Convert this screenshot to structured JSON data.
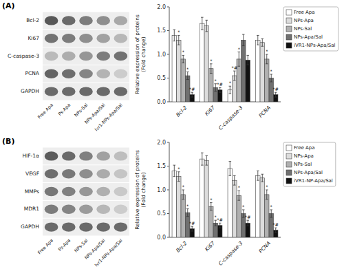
{
  "chart_data": [
    {
      "type": "heatmap",
      "title": "(A)",
      "x": [
        "Free Apa",
        "Ps-Apa",
        "NPs-Sal",
        "NPs-Apa/Sal",
        "Ivr1-NPs-Apa/Sal"
      ],
      "y": [
        "Bcl-2",
        "Ki67",
        "C-caspase-3",
        "PCNA",
        "GAPDH"
      ],
      "values": [
        [
          0.92,
          0.82,
          0.72,
          0.62,
          0.48
        ],
        [
          0.78,
          0.72,
          0.62,
          0.52,
          0.4
        ],
        [
          0.38,
          0.45,
          0.58,
          0.72,
          0.78
        ],
        [
          0.85,
          0.8,
          0.68,
          0.42,
          0.28
        ],
        [
          0.82,
          0.82,
          0.82,
          0.82,
          0.82
        ]
      ]
    },
    {
      "type": "bar",
      "categories": [
        "Bcl-2",
        "Ki67",
        "C-caspase-3",
        "PCNA"
      ],
      "ylabel": "Relative expression of proteins\n(Fold change)",
      "ylim": [
        0,
        2.0
      ],
      "yticks": [
        {
          "value": 0.0,
          "label": "0.0"
        },
        0.5,
        {
          "value": 1.0,
          "label": "1.0"
        },
        1.5,
        {
          "value": 2.0,
          "label": "2.0"
        }
      ],
      "legend": "right",
      "series": [
        {
          "name": "Free Apa",
          "color": "#FFFFFF",
          "values": [
            1.4,
            1.65,
            0.25,
            1.3
          ],
          "errors": [
            0.12,
            0.13,
            0.08,
            0.1
          ],
          "annotations": [
            null,
            null,
            "*",
            null
          ]
        },
        {
          "name": "NPs-Apa",
          "color": "#DCDCDC",
          "values": [
            1.3,
            1.6,
            0.55,
            1.25
          ],
          "errors": [
            0.1,
            0.12,
            0.1,
            0.08
          ],
          "annotations": [
            "*",
            null,
            "*#",
            null
          ]
        },
        {
          "name": "NPs-Sal",
          "color": "#B0B0B0",
          "values": [
            0.9,
            0.7,
            0.9,
            0.9
          ],
          "errors": [
            0.08,
            0.1,
            0.15,
            0.1
          ],
          "annotations": [
            "*",
            "*",
            "*",
            "*"
          ]
        },
        {
          "name": "NPs-Apa/Sal",
          "color": "#707070",
          "values": [
            0.55,
            0.3,
            1.3,
            0.5
          ],
          "errors": [
            0.08,
            0.08,
            0.12,
            0.08
          ],
          "annotations": [
            "*",
            "*",
            null,
            "*"
          ]
        },
        {
          "name": "iVR1-NPs-Apa/Sal",
          "color": "#111111",
          "values": [
            0.15,
            0.25,
            0.88,
            0.15
          ],
          "errors": [
            0.05,
            0.05,
            0.1,
            0.05
          ],
          "annotations": [
            "*#",
            "*#",
            null,
            "*#"
          ]
        }
      ]
    },
    {
      "type": "heatmap",
      "title": "(B)",
      "x": [
        "Free Apa",
        "Ps-Apa",
        "NPs-Sal",
        "NPs-Apa/Sal",
        "Ivr1-NPs-Apa/Sal"
      ],
      "y": [
        "HIF-1α",
        "VEGF",
        "MMPs",
        "MDR1",
        "GAPDH"
      ],
      "values": [
        [
          0.9,
          0.82,
          0.7,
          0.52,
          0.36
        ],
        [
          0.8,
          0.74,
          0.62,
          0.46,
          0.32
        ],
        [
          0.75,
          0.7,
          0.58,
          0.44,
          0.3
        ],
        [
          0.72,
          0.68,
          0.55,
          0.4,
          0.28
        ],
        [
          0.82,
          0.82,
          0.82,
          0.82,
          0.82
        ]
      ]
    },
    {
      "type": "bar",
      "categories": [
        "Bcl-2",
        "Ki67",
        "C-caspase-3",
        "PCNA"
      ],
      "ylabel": "Relative expression of proteins\n(Fold change)",
      "ylim": [
        0,
        2.0
      ],
      "yticks": [
        {
          "value": 0.0,
          "label": "0.0"
        },
        0.5,
        {
          "value": 1.0,
          "label": "1.0"
        },
        1.5,
        {
          "value": 2.0,
          "label": "2.0"
        }
      ],
      "legend": "right",
      "series": [
        {
          "name": "Free Apa",
          "color": "#FFFFFF",
          "values": [
            1.4,
            1.65,
            1.45,
            1.3
          ],
          "errors": [
            0.12,
            0.13,
            0.15,
            0.1
          ]
        },
        {
          "name": "NPs-Apa",
          "color": "#DCDCDC",
          "values": [
            1.28,
            1.62,
            1.2,
            1.25
          ],
          "errors": [
            0.1,
            0.1,
            0.1,
            0.08
          ],
          "annotations": [
            "*",
            null,
            null,
            null
          ]
        },
        {
          "name": "NPs-Sal",
          "color": "#B0B0B0",
          "values": [
            0.9,
            0.65,
            0.88,
            0.9
          ],
          "errors": [
            0.1,
            0.08,
            0.1,
            0.1
          ],
          "annotations": [
            "*",
            "*",
            "*",
            "*"
          ]
        },
        {
          "name": "NPs-Apa/Sal",
          "color": "#707070",
          "values": [
            0.52,
            0.3,
            0.5,
            0.5
          ],
          "errors": [
            0.08,
            0.06,
            0.08,
            0.08
          ],
          "annotations": [
            "*",
            "*",
            "*",
            "*"
          ]
        },
        {
          "name": "iVR1-NP-Apa/Sal",
          "color": "#111111",
          "values": [
            0.18,
            0.25,
            0.3,
            0.15
          ],
          "errors": [
            0.05,
            0.05,
            0.06,
            0.05
          ],
          "annotations": [
            "*#",
            "*#",
            "*#",
            "*#"
          ]
        }
      ]
    }
  ]
}
